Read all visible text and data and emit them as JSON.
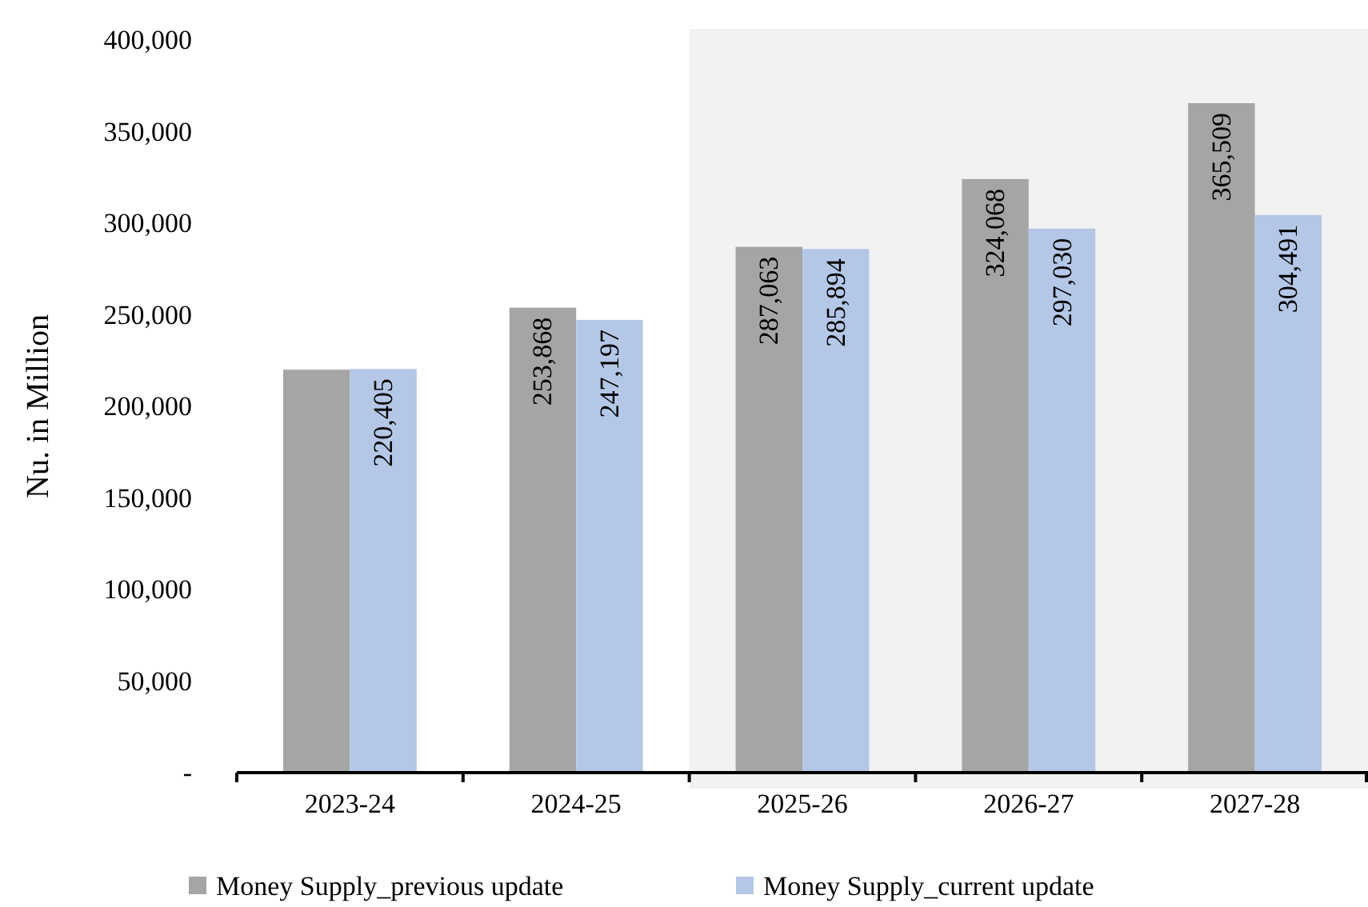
{
  "chart_data": {
    "type": "bar",
    "ylabel": "Nu. in Million",
    "categories": [
      "2023-24",
      "2024-25",
      "2025-26",
      "2026-27",
      "2027-28"
    ],
    "series": [
      {
        "name": "Money Supply_previous update",
        "color": "#a5a5a5",
        "values": [
          220000,
          253868,
          287063,
          324068,
          365509
        ],
        "value_labels": [
          null,
          "253,868",
          "287,063",
          "324,068",
          "365,509"
        ]
      },
      {
        "name": "Money Supply_current update",
        "color": "#b4c7e7",
        "values": [
          220405,
          247197,
          285894,
          297030,
          304491
        ],
        "value_labels": [
          "220,405",
          "247,197",
          "285,894",
          "297,030",
          "304,491"
        ]
      }
    ],
    "ylim": [
      0,
      400000
    ],
    "yticks": [
      {
        "value": 0,
        "label": "-"
      },
      {
        "value": 50000,
        "label": "50,000"
      },
      {
        "value": 100000,
        "label": "100,000"
      },
      {
        "value": 150000,
        "label": "150,000"
      },
      {
        "value": 200000,
        "label": "200,000"
      },
      {
        "value": 250000,
        "label": "250,000"
      },
      {
        "value": 300000,
        "label": "300,000"
      },
      {
        "value": 350000,
        "label": "350,000"
      },
      {
        "value": 400000,
        "label": "400,000"
      }
    ],
    "bands": [
      {
        "axis": "x",
        "from": "2025-26",
        "to": "2027-28",
        "color": "#f2f2f2"
      }
    ],
    "grid": false,
    "legend": "bottom"
  }
}
